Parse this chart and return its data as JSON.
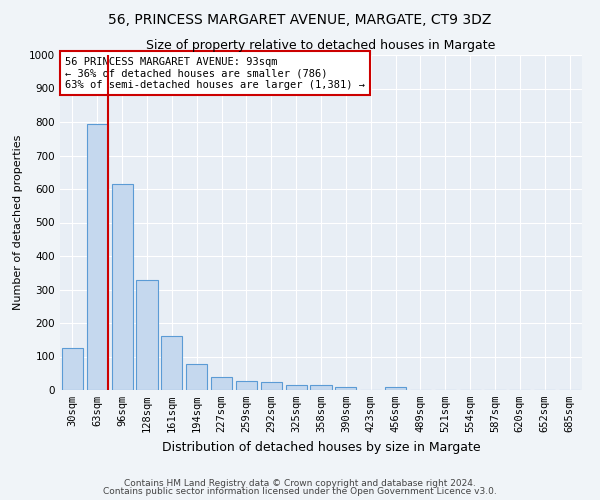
{
  "title": "56, PRINCESS MARGARET AVENUE, MARGATE, CT9 3DZ",
  "subtitle": "Size of property relative to detached houses in Margate",
  "xlabel": "Distribution of detached houses by size in Margate",
  "ylabel": "Number of detached properties",
  "bin_labels": [
    "30sqm",
    "63sqm",
    "96sqm",
    "128sqm",
    "161sqm",
    "194sqm",
    "227sqm",
    "259sqm",
    "292sqm",
    "325sqm",
    "358sqm",
    "390sqm",
    "423sqm",
    "456sqm",
    "489sqm",
    "521sqm",
    "554sqm",
    "587sqm",
    "620sqm",
    "652sqm",
    "685sqm"
  ],
  "bar_values": [
    125,
    795,
    615,
    328,
    162,
    78,
    40,
    27,
    23,
    15,
    15,
    8,
    0,
    10,
    0,
    0,
    0,
    0,
    0,
    0,
    0
  ],
  "bar_color": "#c5d8ee",
  "bar_edgecolor": "#5b9bd5",
  "red_line_x": 1.45,
  "vline_color": "#cc0000",
  "annotation_text": "56 PRINCESS MARGARET AVENUE: 93sqm\n← 36% of detached houses are smaller (786)\n63% of semi-detached houses are larger (1,381) →",
  "annotation_box_facecolor": "#ffffff",
  "annotation_box_edgecolor": "#cc0000",
  "ylim": [
    0,
    1000
  ],
  "yticks": [
    0,
    100,
    200,
    300,
    400,
    500,
    600,
    700,
    800,
    900,
    1000
  ],
  "footnote1": "Contains HM Land Registry data © Crown copyright and database right 2024.",
  "footnote2": "Contains public sector information licensed under the Open Government Licence v3.0.",
  "background_color": "#f0f4f8",
  "plot_bg_color": "#e8eef5",
  "grid_color": "#ffffff",
  "title_fontsize": 10,
  "subtitle_fontsize": 9,
  "xlabel_fontsize": 9,
  "ylabel_fontsize": 8,
  "tick_fontsize": 7.5,
  "annot_fontsize": 7.5,
  "footnote_fontsize": 6.5
}
